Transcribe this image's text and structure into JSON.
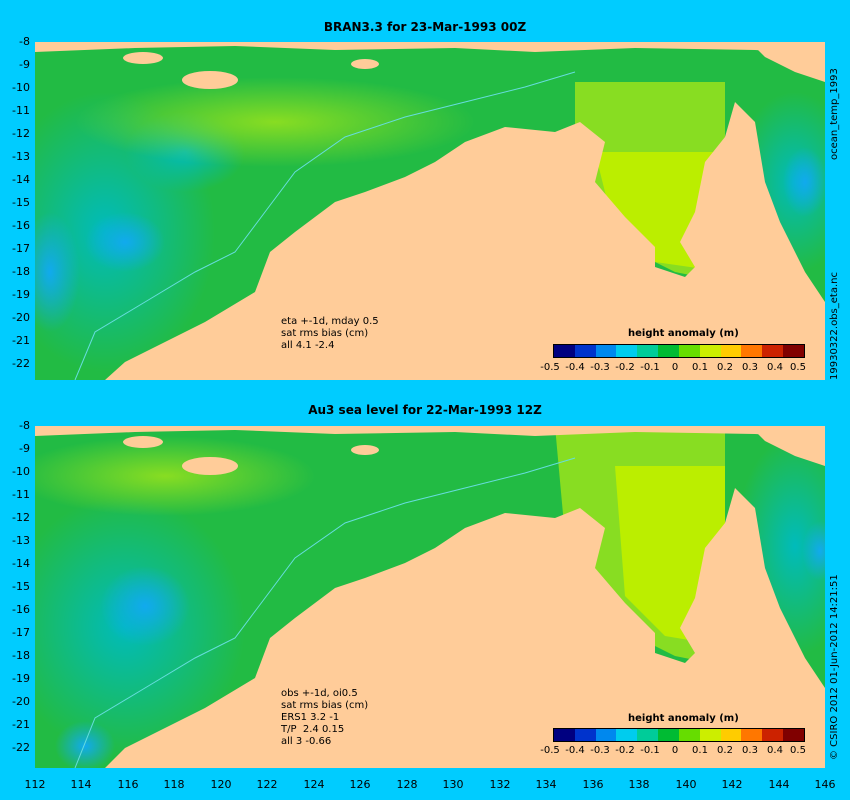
{
  "panel1": {
    "title": "BRAN3.3 for 23-Mar-1993 00Z",
    "notes": [
      "eta +-1d, mday 0.5",
      "sat rms bias (cm)",
      "all 4.1 -2.4"
    ]
  },
  "panel2": {
    "title": "Au3 sea level  for 22-Mar-1993 12Z",
    "notes": [
      "obs +-1d, oi0.5",
      "sat rms bias (cm)",
      "ERS1 3.2 -1",
      "T/P  2.4 0.15",
      "all 3 -0.66"
    ]
  },
  "colorbar": {
    "title": "height anomaly (m)",
    "ticks": [
      "-0.5",
      "-0.4",
      "-0.3",
      "-0.2",
      "-0.1",
      "0",
      "0.1",
      "0.2",
      "0.3",
      "0.4",
      "0.5"
    ],
    "colors": [
      "#000080",
      "#0033cc",
      "#0088ee",
      "#00ccee",
      "#00cc99",
      "#00bb33",
      "#66dd00",
      "#ccee00",
      "#ffcc00",
      "#ff7700",
      "#cc2200",
      "#800000"
    ]
  },
  "axes": {
    "lat_ticks": [
      "-8",
      "-9",
      "-10",
      "-11",
      "-12",
      "-13",
      "-14",
      "-15",
      "-16",
      "-17",
      "-18",
      "-19",
      "-20",
      "-21",
      "-22"
    ],
    "lon_ticks": [
      "112",
      "114",
      "116",
      "118",
      "120",
      "122",
      "124",
      "126",
      "128",
      "130",
      "132",
      "134",
      "136",
      "138",
      "140",
      "142",
      "144",
      "146"
    ]
  },
  "side_labels": {
    "top": "ocean_temp_1993",
    "middle": "19930322.obs_eta.nc",
    "bottom": "© CSIRO 2012  01-Jun-2012 14:21:51"
  },
  "colors": {
    "background": "#00ccff",
    "land": "#ffcc99",
    "ocean_base": "#22bb44"
  }
}
